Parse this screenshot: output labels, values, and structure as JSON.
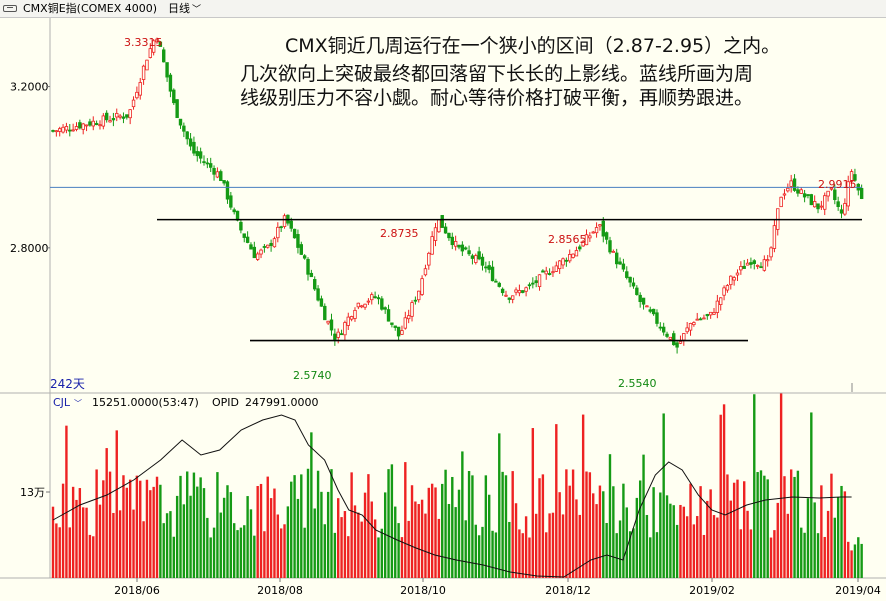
{
  "header": {
    "instrument": "CMX铜E指(COMEX 4000)",
    "period": "日线"
  },
  "annotation": {
    "line1": "CMX铜近几周运行在一个狭小的区间（2.87-2.95）之内。",
    "line2": "几次欲向上突破最终都回落留下长长的上影线。蓝线所画为周",
    "line3": "线级别压力不容小觑。耐心等待价格打破平衡，再顺势跟进。"
  },
  "colors": {
    "up": "#ee2222",
    "down": "#159a15",
    "blue_line": "#4a7fc0",
    "bg": "#fffff2",
    "label_red": "#cc1111",
    "label_green": "#118811",
    "label_blue": "#1a22aa"
  },
  "chart_data": {
    "type": "candlestick",
    "price_axis": {
      "ticks": [
        "3.2000",
        "2.8000"
      ],
      "range": [
        2.44,
        3.37
      ]
    },
    "time_axis": {
      "ticks": [
        "2018/06",
        "2018/08",
        "2018/10",
        "2018/12",
        "2019/02",
        "2019/04"
      ]
    },
    "bar_count_label": "242天",
    "annotated_prices": [
      {
        "label": "3.3315",
        "role": "high",
        "color": "red"
      },
      {
        "label": "2.8735",
        "role": "high",
        "color": "red"
      },
      {
        "label": "2.8565",
        "role": "high",
        "color": "red"
      },
      {
        "label": "2.9915",
        "role": "high",
        "color": "red"
      },
      {
        "label": "2.5740",
        "role": "low",
        "color": "green"
      },
      {
        "label": "2.5540",
        "role": "low",
        "color": "green"
      }
    ],
    "price_path_keypoints": [
      {
        "date": "2018/05",
        "price": 3.09
      },
      {
        "date": "2018/06 (early)",
        "price": 3.12
      },
      {
        "date": "2018/06 (peak)",
        "price": 3.3315
      },
      {
        "date": "2018/07",
        "price": 2.98
      },
      {
        "date": "2018/07 (late)",
        "price": 2.78
      },
      {
        "date": "2018/08",
        "price": 2.8735
      },
      {
        "date": "2018/08 (low)",
        "price": 2.574
      },
      {
        "date": "2018/09",
        "price": 2.6
      },
      {
        "date": "2018/10",
        "price": 2.8735
      },
      {
        "date": "2018/11",
        "price": 2.7
      },
      {
        "date": "2018/12",
        "price": 2.8565
      },
      {
        "date": "2019/01 (low)",
        "price": 2.554
      },
      {
        "date": "2019/02",
        "price": 2.8
      },
      {
        "date": "2019/03",
        "price": 2.9915
      },
      {
        "date": "2019/04",
        "price": 2.92
      }
    ],
    "horizontal_lines": [
      {
        "name": "resistance",
        "price": 2.87,
        "color": "black"
      },
      {
        "name": "support",
        "price": 2.57,
        "color": "black"
      },
      {
        "name": "weekly resistance",
        "price": 2.95,
        "color": "blue"
      }
    ],
    "volume": {
      "indicator_name": "CJL",
      "cjl_value": "15251.0000(53:47)",
      "opid_label": "OPID",
      "opid_value": "247991.0000",
      "axis_tick": "13万"
    }
  }
}
